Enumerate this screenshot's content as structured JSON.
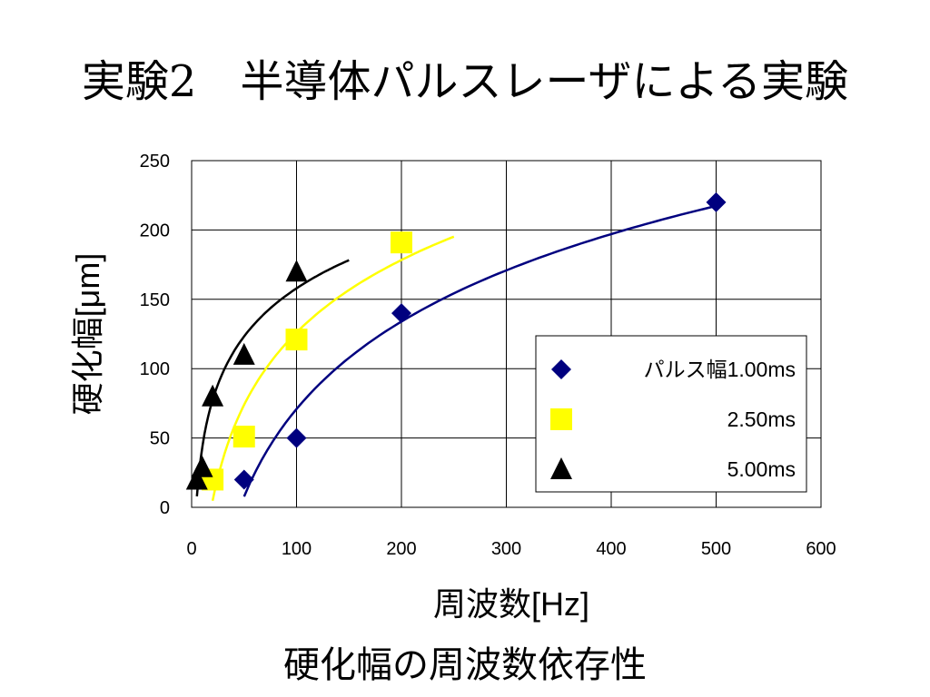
{
  "slide": {
    "title": "実験2　半導体パルスレーザによる実験",
    "caption": "硬化幅の周波数依存性"
  },
  "chart_data": {
    "type": "scatter",
    "xlabel": "周波数[Hz]",
    "ylabel": "硬化幅[μm]",
    "xlim": [
      0,
      600
    ],
    "ylim": [
      0,
      250
    ],
    "xticks": [
      0,
      100,
      200,
      300,
      400,
      500,
      600
    ],
    "yticks": [
      0,
      50,
      100,
      150,
      200,
      250
    ],
    "grid": true,
    "legend_position": "right",
    "series": [
      {
        "name": "パルス幅1.00ms",
        "marker": "diamond",
        "color": "#00007f",
        "points": [
          [
            50,
            20
          ],
          [
            100,
            50
          ],
          [
            200,
            140
          ],
          [
            500,
            220
          ]
        ],
        "trend": "logarithmic",
        "trend_range": [
          50,
          500
        ]
      },
      {
        "name": "2.50ms",
        "marker": "square",
        "color": "#ffff00",
        "points": [
          [
            20,
            20
          ],
          [
            50,
            51
          ],
          [
            100,
            121
          ],
          [
            200,
            191
          ]
        ],
        "trend": "logarithmic",
        "trend_range": [
          20,
          250
        ]
      },
      {
        "name": "5.00ms",
        "marker": "triangle",
        "color": "#000000",
        "points": [
          [
            5,
            20
          ],
          [
            10,
            29
          ],
          [
            20,
            80
          ],
          [
            50,
            110
          ],
          [
            100,
            170
          ]
        ],
        "trend": "logarithmic",
        "trend_range": [
          5,
          150
        ]
      }
    ]
  }
}
